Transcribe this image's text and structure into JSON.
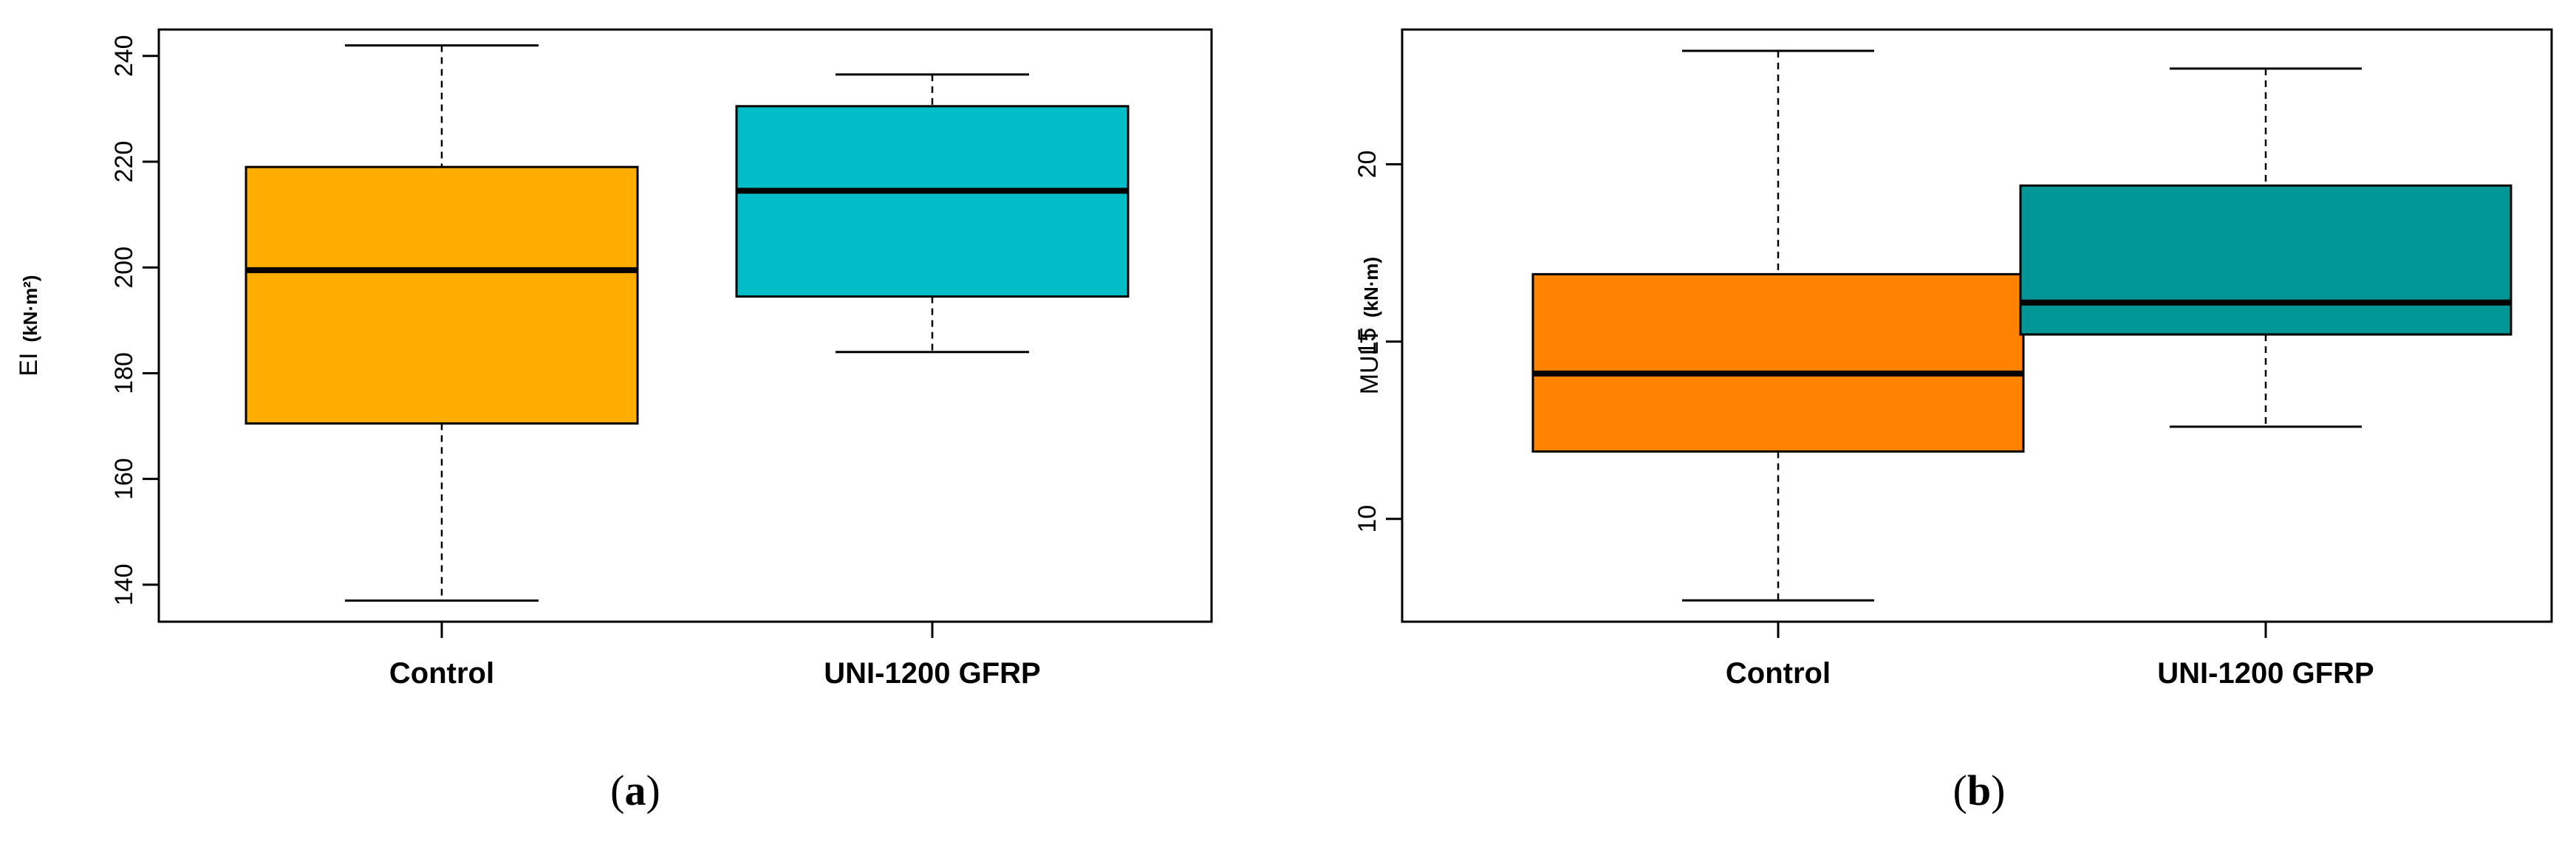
{
  "chart_data": [
    {
      "type": "box",
      "panel_label": "a",
      "ylabel": "EI",
      "ylabel_unit": "(kN·m²)",
      "ylim": [
        133,
        245
      ],
      "yticks": [
        140,
        160,
        180,
        200,
        220,
        240
      ],
      "categories": [
        "Control",
        "UNI-1200 GFRP"
      ],
      "boxes": [
        {
          "name": "Control",
          "min": 137,
          "q1": 170.5,
          "median": 199.5,
          "q3": 219,
          "max": 242,
          "color": "#FFAE00"
        },
        {
          "name": "UNI-1200 GFRP",
          "min": 184,
          "q1": 194.5,
          "median": 214.5,
          "q3": 230.5,
          "max": 236.5,
          "color": "#00BEC8"
        }
      ],
      "grid": false
    },
    {
      "type": "box",
      "panel_label": "b",
      "ylabel": "MULT",
      "ylabel_unit": "(kN·m)",
      "ylim": [
        7.1,
        23.8
      ],
      "yticks": [
        10,
        15,
        20
      ],
      "categories": [
        "Control",
        "UNI-1200 GFRP"
      ],
      "boxes": [
        {
          "name": "Control",
          "min": 7.7,
          "q1": 11.9,
          "median": 14.1,
          "q3": 16.9,
          "max": 23.2,
          "color": "#FF8200"
        },
        {
          "name": "UNI-1200 GFRP",
          "min": 12.6,
          "q1": 15.2,
          "median": 16.1,
          "q3": 19.4,
          "max": 22.7,
          "color": "#009696"
        }
      ],
      "grid": false
    }
  ]
}
